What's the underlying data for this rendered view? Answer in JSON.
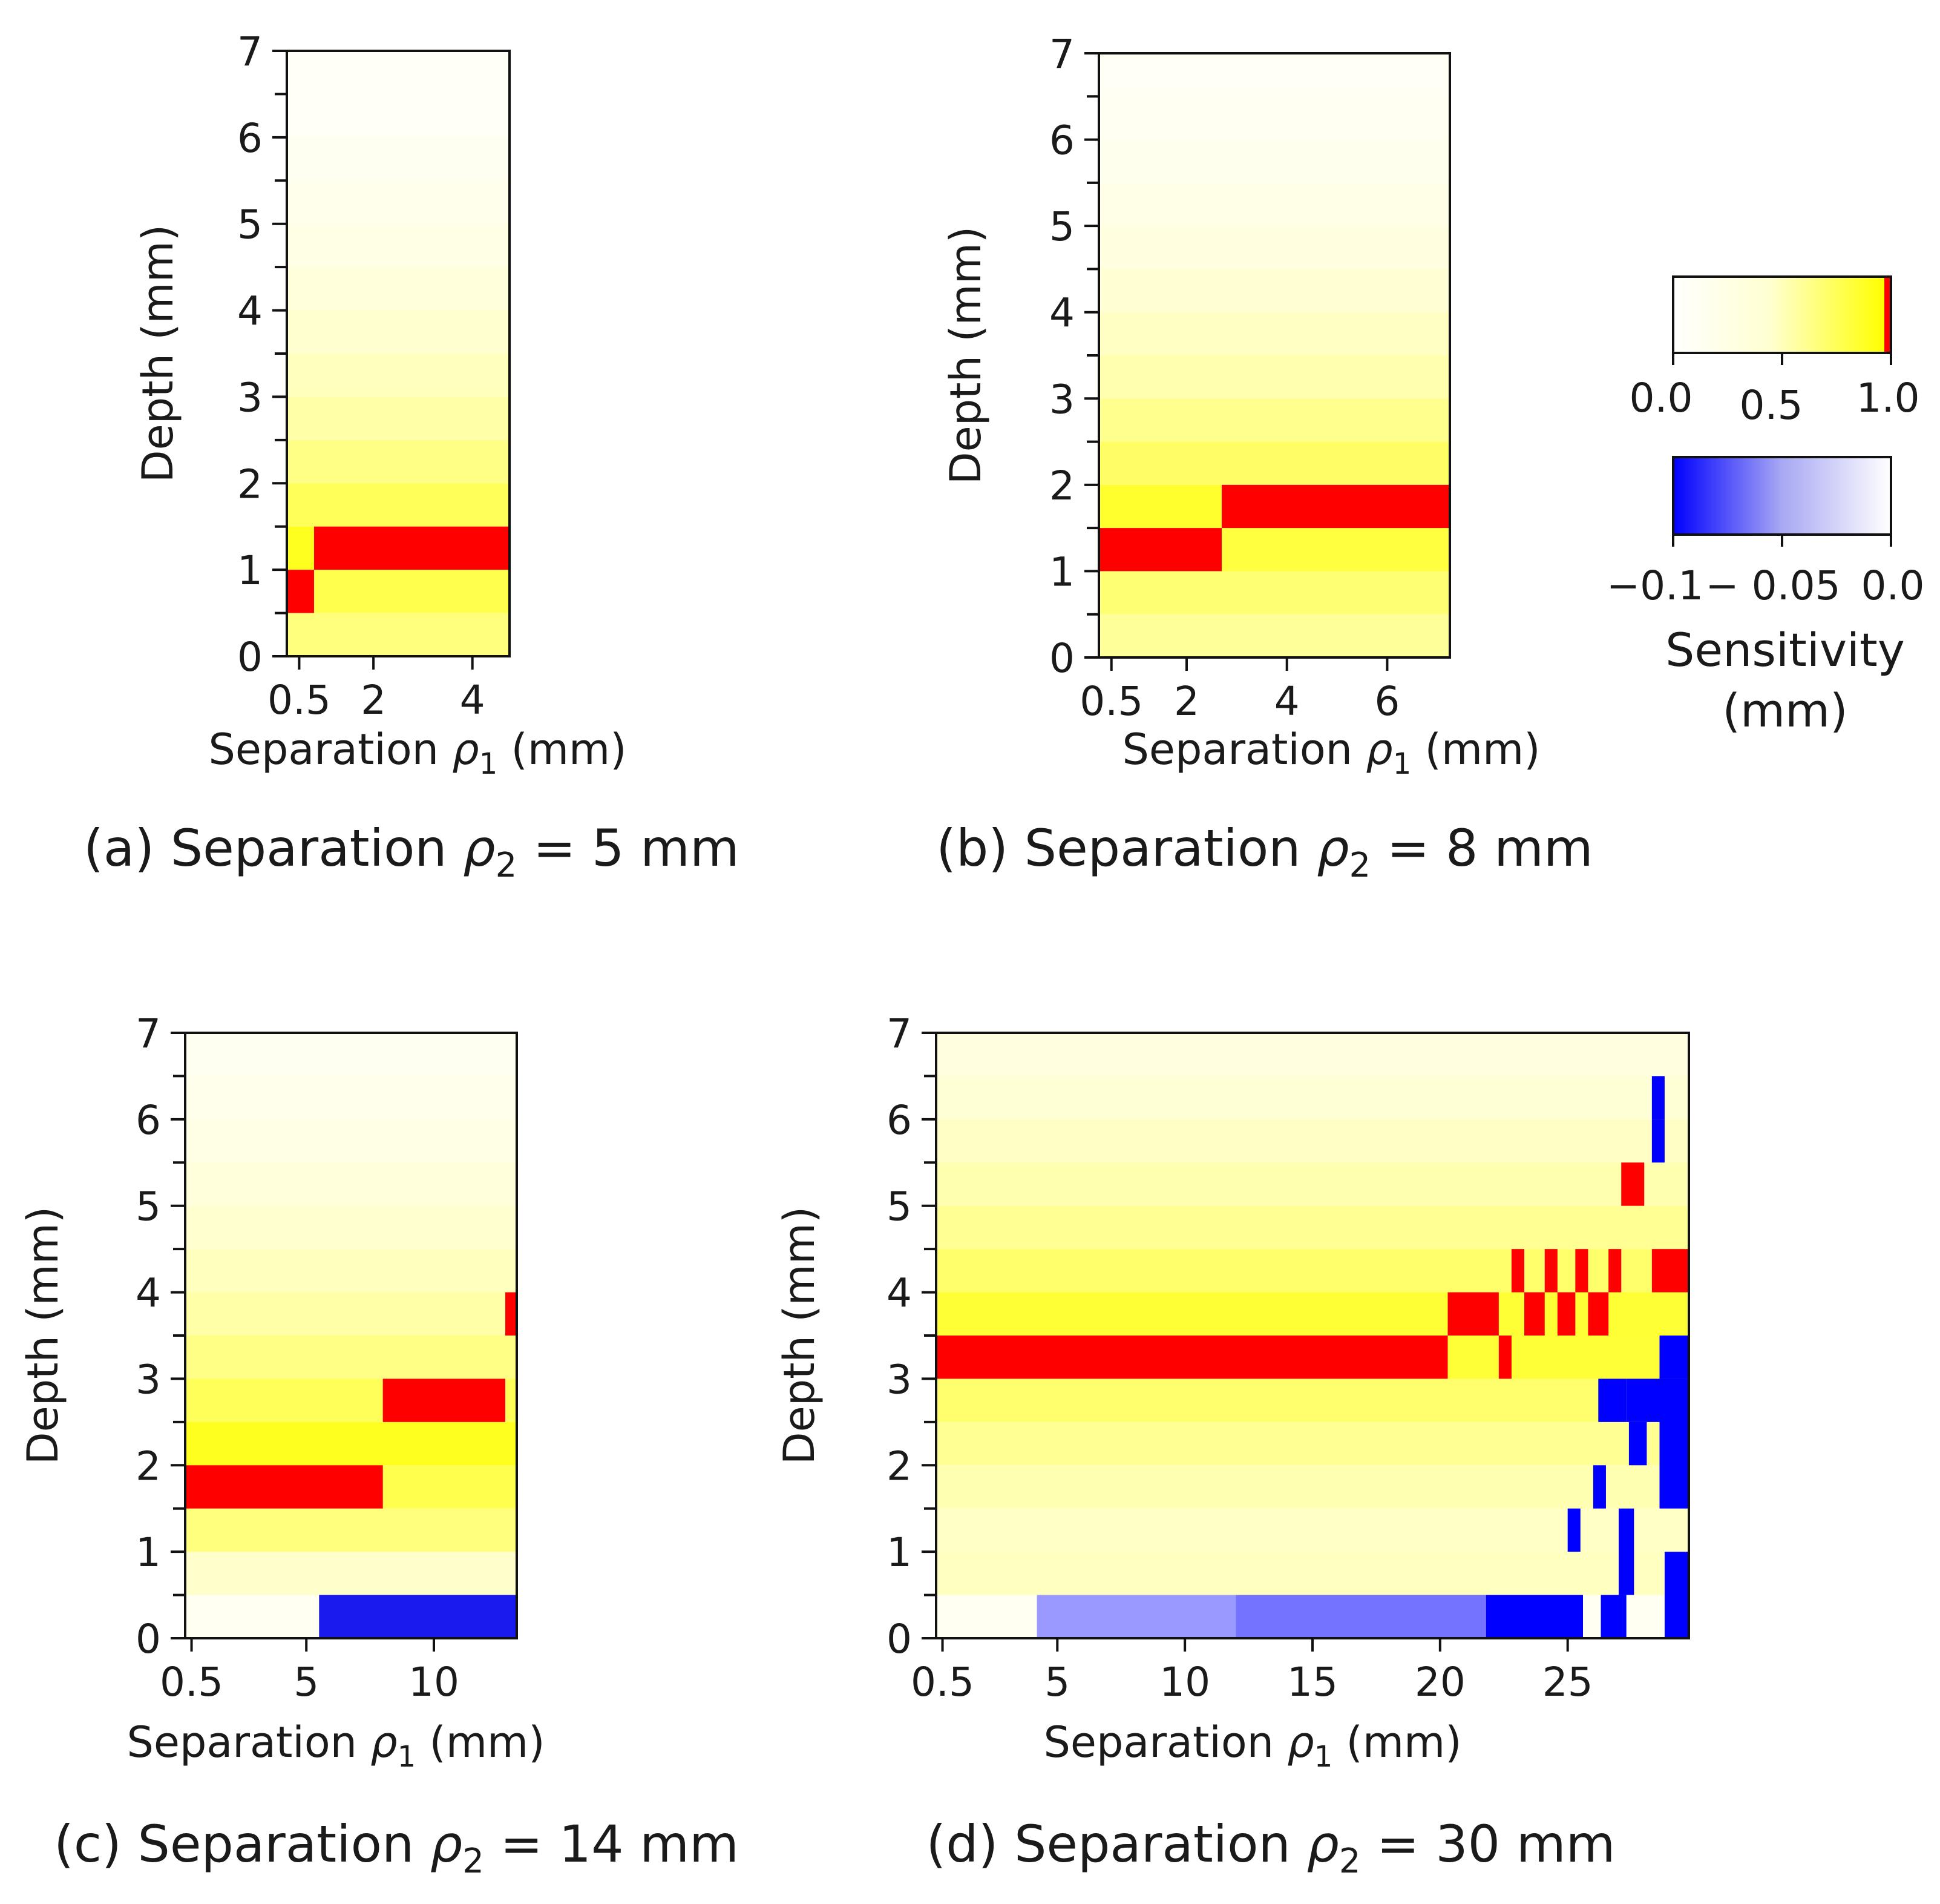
{
  "figure": {
    "x_label": "Separation",
    "x_sym": "ρ",
    "x_sub": "1",
    "x_unit": " (mm)",
    "y_label": "Depth (mm)",
    "caption_sym": "ρ",
    "caption_sub": "2"
  },
  "colorbar": {
    "title": "Sensitivity",
    "unit": "(mm)",
    "positive_ticks": [
      "0.0",
      "0.5",
      "1.0"
    ],
    "negative_ticks": [
      "−0.1",
      "− 0.05",
      "0.0"
    ],
    "colors": {
      "white": "#ffffff",
      "yellow": "#ffff00",
      "red": "#ff0000",
      "blue": "#0000ff"
    }
  },
  "chart_data": [
    {
      "id": "a",
      "type": "heatmap",
      "caption_prefix": "(a) Separation",
      "caption_suffix": " = 5 mm",
      "xlabel": "Separation ρ1 (mm)",
      "ylabel": "Depth (mm)",
      "xlim": [
        0.25,
        4.75
      ],
      "ylim": [
        0,
        7
      ],
      "xticks": [
        0.5,
        2,
        4
      ],
      "xtick_labels": [
        "0.5",
        "2",
        "4"
      ],
      "yticks": [
        0,
        1,
        2,
        3,
        4,
        5,
        6,
        7
      ],
      "ytick_labels": [
        "0",
        "1",
        "2",
        "3",
        "4",
        "5",
        "6",
        "7"
      ],
      "row_height": 0.5,
      "peak_segments": [
        {
          "x0": 0.25,
          "x1": 0.8,
          "y0": 0.5,
          "y1": 1.0
        },
        {
          "x0": 0.8,
          "x1": 4.75,
          "y0": 1.0,
          "y1": 1.5
        }
      ],
      "negative_segments": []
    },
    {
      "id": "b",
      "type": "heatmap",
      "caption_prefix": "(b) Separation",
      "caption_suffix": " = 8 mm",
      "xlabel": "Separation ρ1 (mm)",
      "ylabel": "Depth (mm)",
      "xlim": [
        0.25,
        7.25
      ],
      "ylim": [
        0,
        7
      ],
      "xticks": [
        0.5,
        2,
        4,
        6
      ],
      "xtick_labels": [
        "0.5",
        "2",
        "4",
        "6"
      ],
      "yticks": [
        0,
        1,
        2,
        3,
        4,
        5,
        6,
        7
      ],
      "ytick_labels": [
        "0",
        "1",
        "2",
        "3",
        "4",
        "5",
        "6",
        "7"
      ],
      "row_height": 0.5,
      "peak_segments": [
        {
          "x0": 0.25,
          "x1": 2.7,
          "y0": 1.0,
          "y1": 1.5
        },
        {
          "x0": 2.7,
          "x1": 7.25,
          "y0": 1.5,
          "y1": 2.0
        }
      ],
      "negative_segments": []
    },
    {
      "id": "c",
      "type": "heatmap",
      "caption_prefix": "(c) Separation",
      "caption_suffix": " = 14 mm",
      "xlabel": "Separation ρ1 (mm)",
      "ylabel": "Depth (mm)",
      "xlim": [
        0.25,
        13.25
      ],
      "ylim": [
        0,
        7
      ],
      "xticks": [
        0.5,
        5,
        10
      ],
      "xtick_labels": [
        "0.5",
        "5",
        "10"
      ],
      "yticks": [
        0,
        1,
        2,
        3,
        4,
        5,
        6,
        7
      ],
      "ytick_labels": [
        "0",
        "1",
        "2",
        "3",
        "4",
        "5",
        "6",
        "7"
      ],
      "row_height": 0.5,
      "peak_segments": [
        {
          "x0": 0.25,
          "x1": 8.0,
          "y0": 1.5,
          "y1": 2.0
        },
        {
          "x0": 8.0,
          "x1": 12.8,
          "y0": 2.5,
          "y1": 3.0
        },
        {
          "x0": 12.8,
          "x1": 13.25,
          "y0": 3.5,
          "y1": 4.0
        }
      ],
      "negative_segments": [
        {
          "x0": 5.5,
          "x1": 13.25,
          "y0": 0.0,
          "y1": 0.5
        }
      ]
    },
    {
      "id": "d",
      "type": "heatmap",
      "caption_prefix": "(d) Separation",
      "caption_suffix": " = 30 mm",
      "xlabel": "Separation ρ1 (mm)",
      "ylabel": "Depth (mm)",
      "xlim": [
        0.25,
        29.75
      ],
      "ylim": [
        0,
        7
      ],
      "xticks": [
        0.5,
        5,
        10,
        15,
        20,
        25
      ],
      "xtick_labels": [
        "0.5",
        "5",
        "10",
        "15",
        "20",
        "25"
      ],
      "yticks": [
        0,
        1,
        2,
        3,
        4,
        5,
        6,
        7
      ],
      "ytick_labels": [
        "0",
        "1",
        "2",
        "3",
        "4",
        "5",
        "6",
        "7"
      ],
      "row_height": 0.5,
      "peak_segments": [
        {
          "x0": 0.25,
          "x1": 20.3,
          "y0": 3.0,
          "y1": 3.5
        },
        {
          "x0": 20.3,
          "x1": 22.3,
          "y0": 3.5,
          "y1": 4.0
        },
        {
          "x0": 22.3,
          "x1": 22.8,
          "y0": 3.0,
          "y1": 3.5
        },
        {
          "x0": 22.8,
          "x1": 23.3,
          "y0": 4.0,
          "y1": 4.5
        },
        {
          "x0": 23.3,
          "x1": 24.1,
          "y0": 3.5,
          "y1": 4.0
        },
        {
          "x0": 24.1,
          "x1": 24.6,
          "y0": 4.0,
          "y1": 4.5
        },
        {
          "x0": 24.6,
          "x1": 25.3,
          "y0": 3.5,
          "y1": 4.0
        },
        {
          "x0": 25.3,
          "x1": 25.8,
          "y0": 4.0,
          "y1": 4.5
        },
        {
          "x0": 25.8,
          "x1": 26.6,
          "y0": 3.5,
          "y1": 4.0
        },
        {
          "x0": 26.6,
          "x1": 27.1,
          "y0": 4.0,
          "y1": 4.5
        },
        {
          "x0": 27.1,
          "x1": 28.0,
          "y0": 5.0,
          "y1": 5.5
        },
        {
          "x0": 28.3,
          "x1": 29.75,
          "y0": 4.0,
          "y1": 4.5
        }
      ],
      "negative_segments": [
        {
          "x0": 4.2,
          "x1": 12.0,
          "y0": 0.0,
          "y1": 0.5
        },
        {
          "x0": 12.0,
          "x1": 21.8,
          "y0": 0.0,
          "y1": 0.5
        },
        {
          "x0": 21.8,
          "x1": 25.6,
          "y0": 0.0,
          "y1": 0.5
        },
        {
          "x0": 26.3,
          "x1": 27.3,
          "y0": 0.0,
          "y1": 0.5
        },
        {
          "x0": 28.8,
          "x1": 29.75,
          "y0": 0.0,
          "y1": 1.0
        },
        {
          "x0": 27.0,
          "x1": 27.6,
          "y0": 0.5,
          "y1": 1.5
        },
        {
          "x0": 25.0,
          "x1": 25.5,
          "y0": 1.0,
          "y1": 1.5
        },
        {
          "x0": 26.0,
          "x1": 26.5,
          "y0": 1.5,
          "y1": 2.0
        },
        {
          "x0": 27.4,
          "x1": 28.1,
          "y0": 2.0,
          "y1": 2.5
        },
        {
          "x0": 28.6,
          "x1": 29.75,
          "y0": 1.5,
          "y1": 3.0
        },
        {
          "x0": 26.2,
          "x1": 27.3,
          "y0": 2.5,
          "y1": 3.0
        },
        {
          "x0": 27.3,
          "x1": 29.75,
          "y0": 2.5,
          "y1": 3.0
        },
        {
          "x0": 28.6,
          "x1": 29.75,
          "y0": 3.0,
          "y1": 3.5
        },
        {
          "x0": 28.3,
          "x1": 28.8,
          "y0": 5.5,
          "y1": 6.0
        },
        {
          "x0": 28.3,
          "x1": 28.8,
          "y0": 6.0,
          "y1": 6.5
        }
      ]
    }
  ]
}
